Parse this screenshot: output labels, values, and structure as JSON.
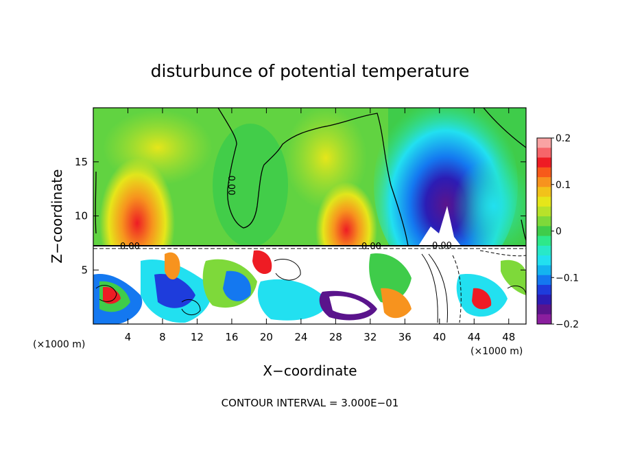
{
  "chart_data": {
    "type": "heatmap",
    "title": "disturbunce of potential temperature",
    "xlabel": "X−coordinate",
    "ylabel": "Z−coordinate",
    "x_unit_left": "(×1000 m)",
    "x_unit_right": "(×1000 m)",
    "xlim": [
      0,
      50
    ],
    "ylim": [
      0,
      20
    ],
    "x_ticks": [
      4,
      8,
      12,
      16,
      20,
      24,
      28,
      32,
      36,
      40,
      44,
      48
    ],
    "y_ticks": [
      5,
      10,
      15
    ],
    "colorbar": {
      "min": -0.2,
      "max": 0.2,
      "tick_labels": [
        "0.2",
        "0.1",
        "0",
        "−0.1",
        "−0.2"
      ],
      "tick_values": [
        0.2,
        0.1,
        0,
        -0.1,
        -0.2
      ],
      "colors": [
        "#f9a3a3",
        "#f6656a",
        "#ee1c24",
        "#f75a1a",
        "#f7931e",
        "#f2c21a",
        "#e6e61a",
        "#b8e22a",
        "#7ed93a",
        "#3fcc4a",
        "#2ee88a",
        "#28e8c8",
        "#22e0f0",
        "#14b4f0",
        "#1478f0",
        "#1e3cdc",
        "#2c1cb4",
        "#5a148c",
        "#8a1e9e"
      ]
    },
    "contour_labels": [
      "0.00",
      "0.00",
      "0.00",
      "0.00"
    ],
    "contour_interval_text": "CONTOUR INTERVAL = 3.000E−01",
    "interface_height": 7.3
  }
}
